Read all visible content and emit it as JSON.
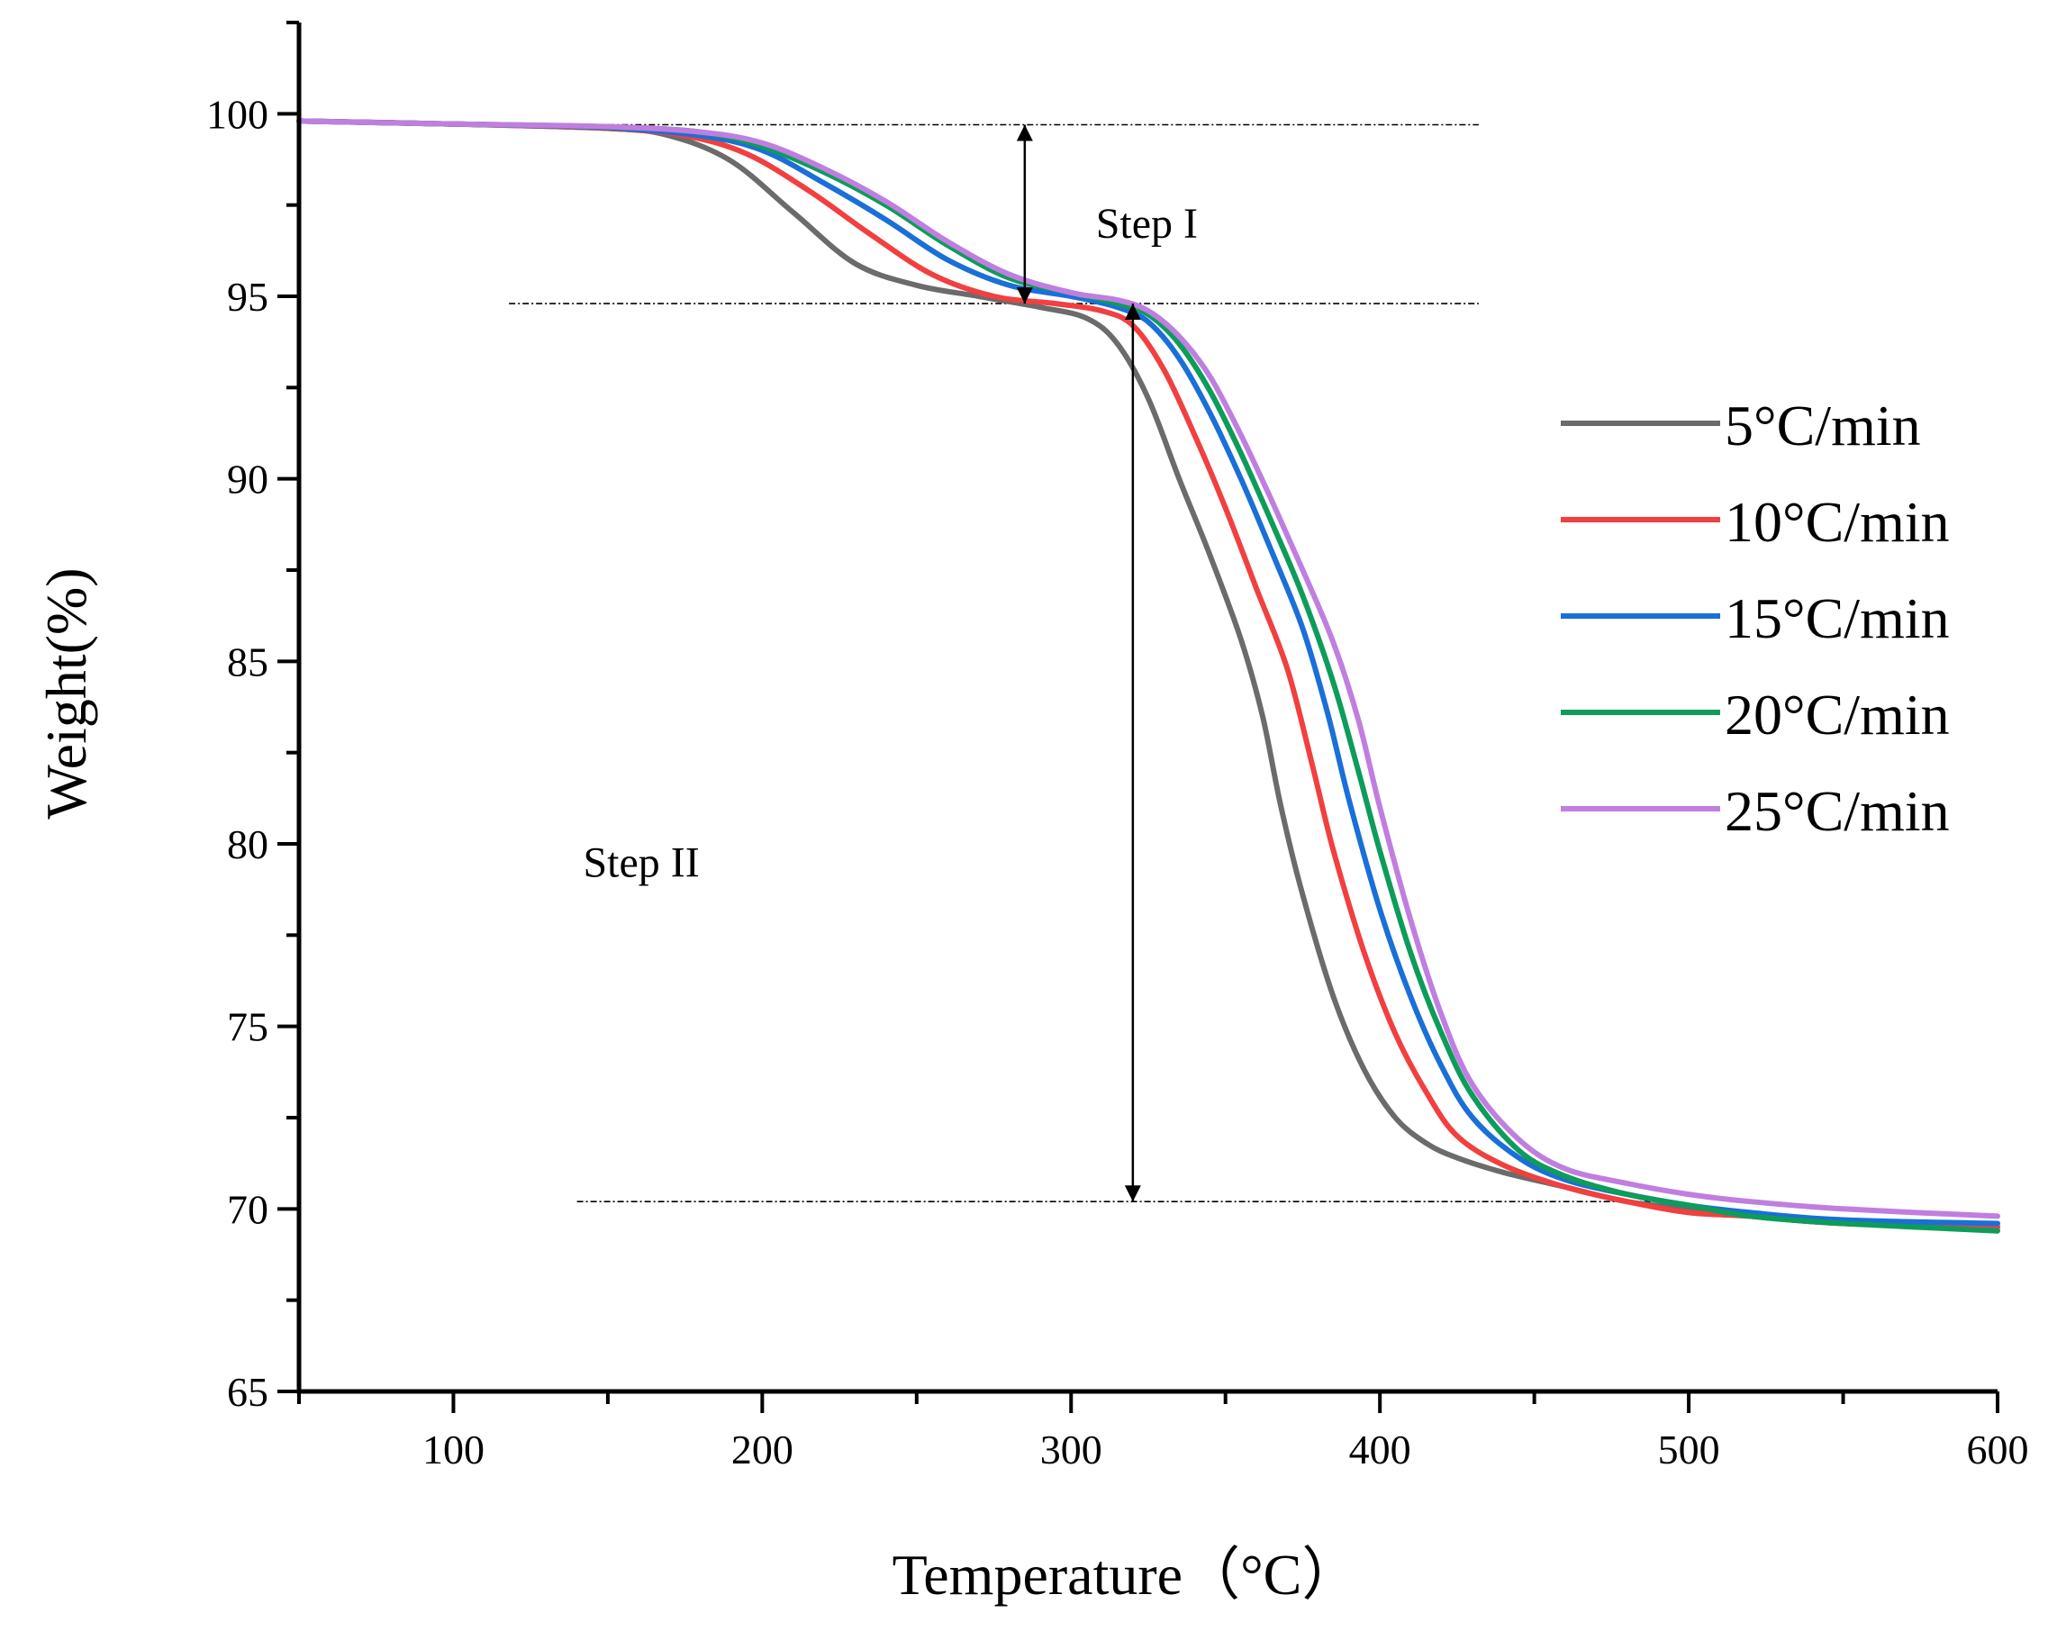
{
  "chart_data": {
    "type": "line",
    "title": "",
    "xlabel": "Temperature（°C）",
    "ylabel": "Weight(%)",
    "xlim": [
      50,
      600
    ],
    "ylim": [
      65,
      102.5
    ],
    "xticks": [
      100,
      200,
      300,
      400,
      500,
      600
    ],
    "yticks": [
      65,
      70,
      75,
      80,
      85,
      90,
      95,
      100
    ],
    "grid": false,
    "legend_position": "right",
    "series": [
      {
        "name": "5°C/min",
        "color": "#6b6b6b",
        "points": [
          [
            50,
            99.8
          ],
          [
            100,
            99.72
          ],
          [
            150,
            99.6
          ],
          [
            170,
            99.4
          ],
          [
            190,
            98.7
          ],
          [
            210,
            97.3
          ],
          [
            230,
            95.9
          ],
          [
            250,
            95.3
          ],
          [
            270,
            95.0
          ],
          [
            290,
            94.7
          ],
          [
            305,
            94.4
          ],
          [
            315,
            93.7
          ],
          [
            325,
            92.2
          ],
          [
            335,
            90.0
          ],
          [
            345,
            87.9
          ],
          [
            355,
            85.6
          ],
          [
            362,
            83.5
          ],
          [
            368,
            81.0
          ],
          [
            375,
            78.6
          ],
          [
            385,
            75.8
          ],
          [
            395,
            73.8
          ],
          [
            405,
            72.5
          ],
          [
            415,
            71.8
          ],
          [
            425,
            71.4
          ],
          [
            440,
            71.0
          ],
          [
            460,
            70.6
          ],
          [
            480,
            70.2
          ],
          [
            500,
            70.0
          ],
          [
            520,
            69.8
          ],
          [
            550,
            69.6
          ],
          [
            600,
            69.5
          ]
        ]
      },
      {
        "name": "10°C/min",
        "color": "#f23f3f",
        "points": [
          [
            50,
            99.8
          ],
          [
            100,
            99.72
          ],
          [
            150,
            99.6
          ],
          [
            175,
            99.4
          ],
          [
            195,
            98.9
          ],
          [
            215,
            97.9
          ],
          [
            235,
            96.7
          ],
          [
            255,
            95.6
          ],
          [
            275,
            95.0
          ],
          [
            295,
            94.8
          ],
          [
            310,
            94.6
          ],
          [
            320,
            94.2
          ],
          [
            330,
            93.0
          ],
          [
            340,
            91.2
          ],
          [
            350,
            89.2
          ],
          [
            360,
            87.0
          ],
          [
            370,
            84.8
          ],
          [
            378,
            82.2
          ],
          [
            385,
            79.8
          ],
          [
            395,
            77.0
          ],
          [
            405,
            74.8
          ],
          [
            415,
            73.2
          ],
          [
            425,
            72.0
          ],
          [
            440,
            71.2
          ],
          [
            460,
            70.6
          ],
          [
            480,
            70.2
          ],
          [
            500,
            69.9
          ],
          [
            520,
            69.8
          ],
          [
            550,
            69.6
          ],
          [
            600,
            69.5
          ]
        ]
      },
      {
        "name": "15°C/min",
        "color": "#1a6fd8",
        "points": [
          [
            50,
            99.8
          ],
          [
            100,
            99.72
          ],
          [
            150,
            99.62
          ],
          [
            180,
            99.4
          ],
          [
            200,
            99.0
          ],
          [
            220,
            98.1
          ],
          [
            240,
            97.1
          ],
          [
            260,
            96.0
          ],
          [
            280,
            95.3
          ],
          [
            300,
            95.0
          ],
          [
            315,
            94.7
          ],
          [
            325,
            94.3
          ],
          [
            335,
            93.3
          ],
          [
            345,
            91.8
          ],
          [
            355,
            90.0
          ],
          [
            365,
            88.0
          ],
          [
            375,
            85.9
          ],
          [
            383,
            83.6
          ],
          [
            390,
            81.2
          ],
          [
            400,
            78.2
          ],
          [
            410,
            75.8
          ],
          [
            420,
            73.9
          ],
          [
            430,
            72.5
          ],
          [
            445,
            71.4
          ],
          [
            460,
            70.8
          ],
          [
            480,
            70.4
          ],
          [
            500,
            70.1
          ],
          [
            520,
            69.9
          ],
          [
            550,
            69.7
          ],
          [
            600,
            69.6
          ]
        ]
      },
      {
        "name": "20°C/min",
        "color": "#0d9c5a",
        "points": [
          [
            50,
            99.8
          ],
          [
            100,
            99.72
          ],
          [
            150,
            99.64
          ],
          [
            180,
            99.5
          ],
          [
            200,
            99.1
          ],
          [
            220,
            98.4
          ],
          [
            240,
            97.5
          ],
          [
            260,
            96.4
          ],
          [
            280,
            95.5
          ],
          [
            300,
            95.1
          ],
          [
            315,
            94.8
          ],
          [
            325,
            94.5
          ],
          [
            335,
            93.7
          ],
          [
            345,
            92.4
          ],
          [
            355,
            90.7
          ],
          [
            365,
            88.8
          ],
          [
            375,
            86.8
          ],
          [
            385,
            84.4
          ],
          [
            393,
            82.0
          ],
          [
            400,
            79.8
          ],
          [
            410,
            77.0
          ],
          [
            420,
            74.8
          ],
          [
            430,
            73.1
          ],
          [
            445,
            71.6
          ],
          [
            460,
            70.9
          ],
          [
            480,
            70.4
          ],
          [
            500,
            70.1
          ],
          [
            520,
            69.8
          ],
          [
            550,
            69.6
          ],
          [
            600,
            69.4
          ]
        ]
      },
      {
        "name": "25°C/min",
        "color": "#c07ee0",
        "points": [
          [
            50,
            99.8
          ],
          [
            100,
            99.72
          ],
          [
            150,
            99.65
          ],
          [
            180,
            99.5
          ],
          [
            200,
            99.2
          ],
          [
            220,
            98.5
          ],
          [
            240,
            97.6
          ],
          [
            260,
            96.5
          ],
          [
            280,
            95.6
          ],
          [
            300,
            95.1
          ],
          [
            315,
            94.9
          ],
          [
            325,
            94.6
          ],
          [
            335,
            93.9
          ],
          [
            345,
            92.8
          ],
          [
            355,
            91.2
          ],
          [
            365,
            89.4
          ],
          [
            375,
            87.5
          ],
          [
            385,
            85.5
          ],
          [
            393,
            83.4
          ],
          [
            400,
            81.0
          ],
          [
            410,
            77.9
          ],
          [
            420,
            75.3
          ],
          [
            430,
            73.4
          ],
          [
            445,
            71.9
          ],
          [
            460,
            71.1
          ],
          [
            480,
            70.7
          ],
          [
            500,
            70.4
          ],
          [
            520,
            70.2
          ],
          [
            550,
            70.0
          ],
          [
            600,
            69.8
          ]
        ]
      }
    ],
    "reference_lines": [
      {
        "y": 99.7,
        "x_start": 137,
        "x_end": 432
      },
      {
        "y": 94.8,
        "x_start": 118,
        "x_end": 432
      },
      {
        "y": 70.2,
        "x_start": 140,
        "x_end": 490
      }
    ],
    "arrows": [
      {
        "x": 285,
        "y_start": 99.7,
        "y_end": 94.8
      },
      {
        "x": 320,
        "y_start": 94.8,
        "y_end": 70.2
      }
    ],
    "annotations": [
      {
        "text": "Step I",
        "x": 308,
        "y": 97.0
      },
      {
        "text": "Step II",
        "x": 142,
        "y": 79.5
      }
    ]
  }
}
